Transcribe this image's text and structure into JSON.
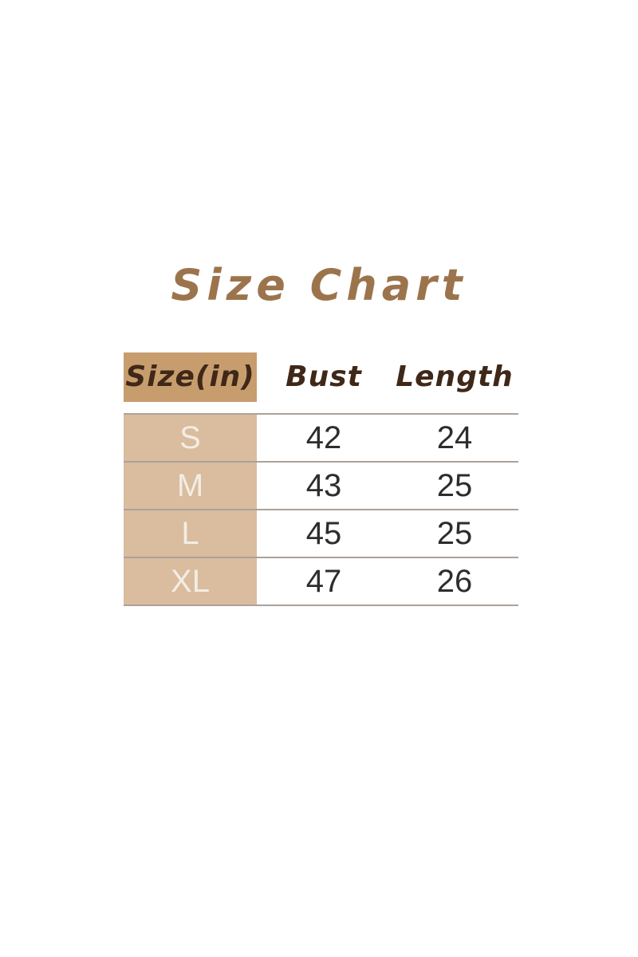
{
  "page": {
    "title": "Size Chart"
  },
  "colors": {
    "title_text": "#9c744c",
    "header_cell_bg": "#c89d6e",
    "header_text": "#3f2818",
    "row_label_bg": "#dabc9f",
    "row_label_text": "#f3ede4",
    "value_text": "#2d2d2d",
    "divider": "#aaa29b",
    "canvas_bg": "#ffffff"
  },
  "chart_data": {
    "type": "table",
    "title": "Size Chart",
    "columns": [
      "Size(in)",
      "Bust",
      "Length"
    ],
    "rows": [
      {
        "size": "S",
        "bust": 42,
        "length": 24
      },
      {
        "size": "M",
        "bust": 43,
        "length": 25
      },
      {
        "size": "L",
        "bust": 45,
        "length": 25
      },
      {
        "size": "XL",
        "bust": 47,
        "length": 26
      }
    ]
  }
}
